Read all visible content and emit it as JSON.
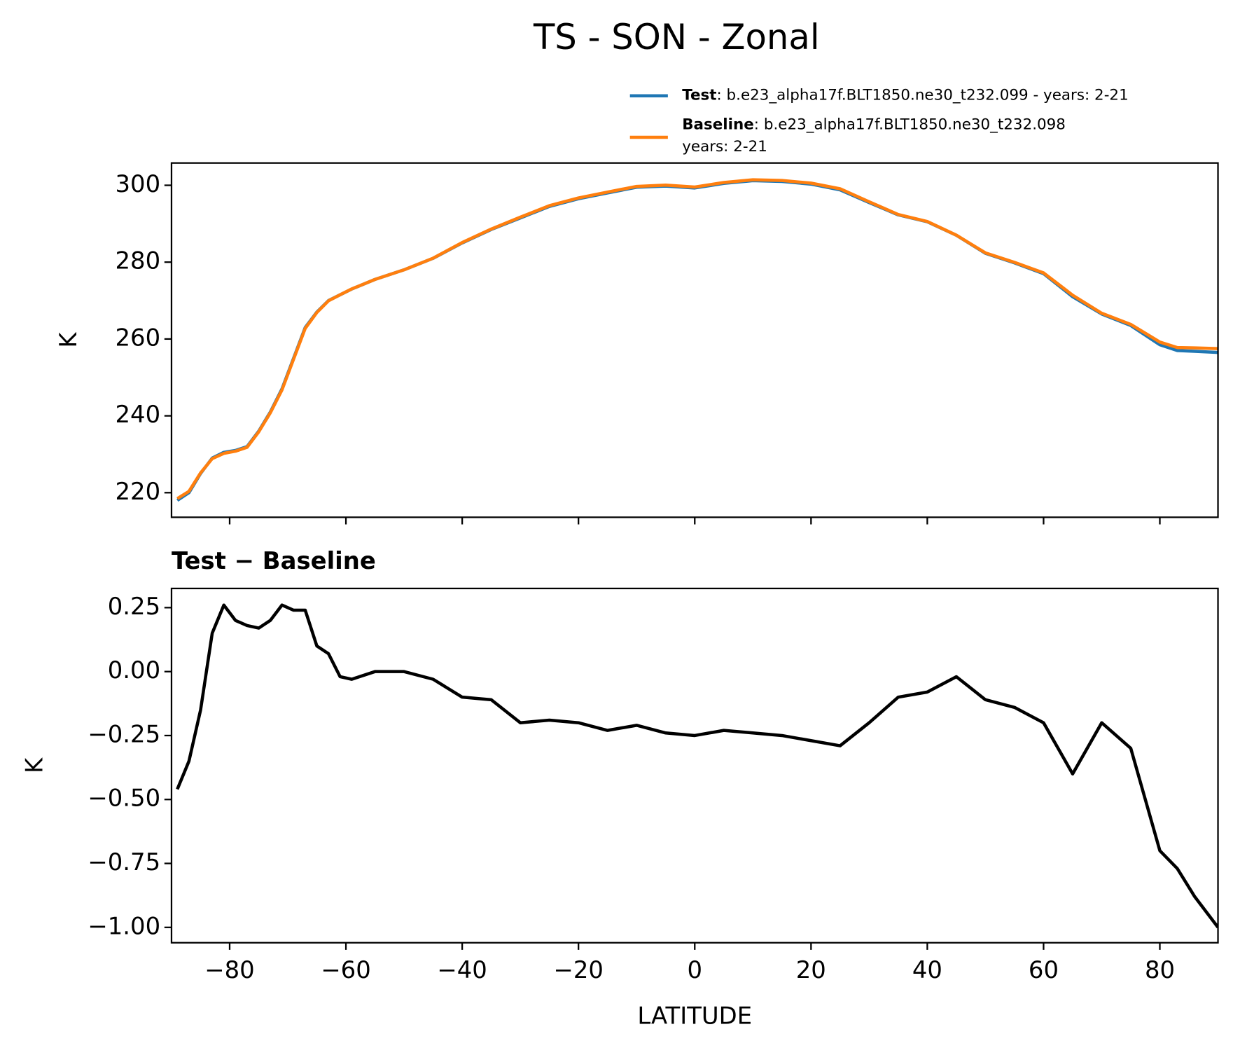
{
  "title": "TS - SON - Zonal",
  "chart_data": [
    {
      "type": "line",
      "ylabel": "K",
      "x": [
        -89,
        -87,
        -85,
        -83,
        -81,
        -79,
        -77,
        -75,
        -73,
        -71,
        -69,
        -67,
        -65,
        -63,
        -61,
        -59,
        -55,
        -50,
        -45,
        -40,
        -35,
        -30,
        -25,
        -20,
        -15,
        -10,
        -5,
        0,
        5,
        10,
        15,
        20,
        25,
        30,
        35,
        40,
        45,
        50,
        55,
        60,
        65,
        70,
        75,
        80,
        83,
        86,
        90
      ],
      "series": [
        {
          "name": "Test",
          "legend_lines": [
            ": b.e23_alpha17f.BLT1850.ne30_t232.099 - years: 2-21"
          ],
          "color": "#1f77b4",
          "values": [
            218,
            220,
            225,
            229,
            230.5,
            231,
            232,
            236,
            241,
            247,
            255,
            263,
            267,
            270,
            271.5,
            273,
            275.5,
            278,
            281,
            285,
            288.5,
            291.5,
            294.5,
            296.5,
            298,
            299.5,
            299.8,
            299.3,
            300.5,
            301.2,
            301,
            300.3,
            298.8,
            295.5,
            292.3,
            290.5,
            287,
            282.3,
            279.8,
            277,
            271,
            266.5,
            263.5,
            258.5,
            257,
            256.8,
            256.5
          ]
        },
        {
          "name": "Baseline",
          "legend_lines": [
            ": b.e23_alpha17f.BLT1850.ne30_t232.098",
            "years: 2-21"
          ],
          "color": "#ff7f0e",
          "values": [
            218.46,
            220.35,
            225.15,
            228.85,
            230.24,
            230.8,
            231.82,
            235.83,
            240.8,
            246.74,
            254.76,
            262.76,
            266.9,
            269.93,
            271.52,
            273.03,
            275.5,
            278,
            281.03,
            285.1,
            288.61,
            291.7,
            294.69,
            296.7,
            298.23,
            299.71,
            300.04,
            299.55,
            300.73,
            301.44,
            301.25,
            300.57,
            299.09,
            295.7,
            292.4,
            290.58,
            287.02,
            282.41,
            279.94,
            277.2,
            271.4,
            266.7,
            263.8,
            259.2,
            257.77,
            257.68,
            257.5
          ]
        }
      ],
      "xlim": [
        -90,
        90
      ],
      "xticks": [
        -80,
        -60,
        -40,
        -20,
        0,
        20,
        40,
        60,
        80
      ],
      "ylim": [
        213.6,
        305.8
      ],
      "yticks": [
        220,
        240,
        260,
        280,
        300
      ]
    },
    {
      "type": "line",
      "title": "Test − Baseline",
      "xlabel": "LATITUDE",
      "ylabel": "K",
      "x": [
        -89,
        -87,
        -85,
        -83,
        -81,
        -79,
        -77,
        -75,
        -73,
        -71,
        -69,
        -67,
        -65,
        -63,
        -61,
        -59,
        -55,
        -50,
        -45,
        -40,
        -35,
        -30,
        -25,
        -20,
        -15,
        -10,
        -5,
        0,
        5,
        10,
        15,
        20,
        25,
        30,
        35,
        40,
        45,
        50,
        55,
        60,
        65,
        70,
        75,
        80,
        83,
        86,
        90
      ],
      "series": [
        {
          "color": "#000000",
          "values": [
            -0.46,
            -0.35,
            -0.15,
            0.15,
            0.26,
            0.2,
            0.18,
            0.17,
            0.2,
            0.26,
            0.24,
            0.24,
            0.1,
            0.07,
            -0.02,
            -0.03,
            0.0,
            0.0,
            -0.03,
            -0.1,
            -0.11,
            -0.2,
            -0.19,
            -0.2,
            -0.23,
            -0.21,
            -0.24,
            -0.25,
            -0.23,
            -0.24,
            -0.25,
            -0.27,
            -0.29,
            -0.2,
            -0.1,
            -0.08,
            -0.02,
            -0.11,
            -0.14,
            -0.2,
            -0.4,
            -0.2,
            -0.3,
            -0.7,
            -0.77,
            -0.88,
            -1.0
          ]
        }
      ],
      "xlim": [
        -90,
        90
      ],
      "xticks": [
        {
          "value": -80,
          "label": "−80"
        },
        {
          "value": -60,
          "label": "−60"
        },
        {
          "value": -40,
          "label": "−40"
        },
        {
          "value": -20,
          "label": "−20"
        },
        0,
        20,
        40,
        60,
        80
      ],
      "ylim": [
        -1.06,
        0.325
      ],
      "yticks": [
        {
          "value": 0.25,
          "label": "0.25"
        },
        {
          "value": 0,
          "label": "0.00"
        },
        {
          "value": -0.25,
          "label": "−0.25"
        },
        {
          "value": -0.5,
          "label": "−0.50"
        },
        {
          "value": -0.75,
          "label": "−0.75"
        },
        {
          "value": -1,
          "label": "−1.00"
        }
      ]
    }
  ]
}
